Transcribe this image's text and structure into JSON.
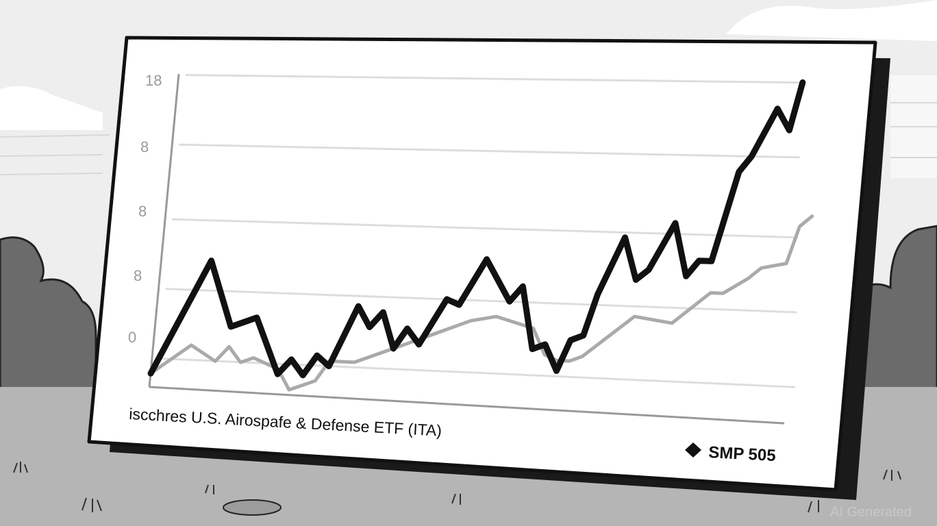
{
  "chart_data": {
    "type": "line",
    "title": "",
    "xlabel": "isсchres U.S. Airospafe & Defense ETF (ITA)",
    "ylabel": "",
    "ytick_labels": [
      "18",
      "8",
      "8",
      "8",
      "0"
    ],
    "grid": true,
    "legend_position": "bottom-right",
    "legend_label": "SMP 505",
    "series": [
      {
        "name": "",
        "color": "#111111",
        "points": [
          [
            0,
            -0.7
          ],
          [
            4,
            1.6
          ],
          [
            6,
            0.3
          ],
          [
            8,
            0.5
          ],
          [
            10,
            -0.6
          ],
          [
            11,
            -0.3
          ],
          [
            12,
            -0.6
          ],
          [
            13,
            -0.2
          ],
          [
            14,
            -0.4
          ],
          [
            16,
            0.8
          ],
          [
            17,
            0.4
          ],
          [
            18,
            0.7
          ],
          [
            19,
            0.0
          ],
          [
            20,
            0.4
          ],
          [
            21,
            0.1
          ],
          [
            23,
            1.0
          ],
          [
            24,
            0.9
          ],
          [
            26,
            1.8
          ],
          [
            28,
            1.0
          ],
          [
            29,
            1.3
          ],
          [
            30,
            0.1
          ],
          [
            31,
            0.2
          ],
          [
            32,
            -0.3
          ],
          [
            33,
            0.3
          ],
          [
            34,
            0.4
          ],
          [
            35,
            1.2
          ],
          [
            37,
            2.3
          ],
          [
            38,
            1.5
          ],
          [
            39,
            1.7
          ],
          [
            41,
            2.6
          ],
          [
            42,
            1.6
          ],
          [
            43,
            1.9
          ],
          [
            44,
            1.9
          ],
          [
            46,
            3.6
          ],
          [
            47,
            3.9
          ],
          [
            49,
            4.8
          ],
          [
            50,
            4.4
          ],
          [
            51,
            5.3
          ]
        ]
      },
      {
        "name": "",
        "color": "#aaaaaa",
        "points": [
          [
            0,
            -0.7
          ],
          [
            3,
            -0.1
          ],
          [
            5,
            -0.4
          ],
          [
            6,
            -0.1
          ],
          [
            7,
            -0.4
          ],
          [
            8,
            -0.3
          ],
          [
            10,
            -0.5
          ],
          [
            11,
            -0.9
          ],
          [
            13,
            -0.7
          ],
          [
            14,
            -0.3
          ],
          [
            16,
            -0.3
          ],
          [
            18,
            -0.1
          ],
          [
            21,
            0.2
          ],
          [
            25,
            0.6
          ],
          [
            27,
            0.7
          ],
          [
            30,
            0.5
          ],
          [
            31,
            0.0
          ],
          [
            32,
            -0.1
          ],
          [
            33,
            -0.1
          ],
          [
            34,
            0.0
          ],
          [
            38,
            0.8
          ],
          [
            41,
            0.7
          ],
          [
            44,
            1.3
          ],
          [
            45,
            1.3
          ],
          [
            47,
            1.6
          ],
          [
            48,
            1.8
          ],
          [
            50,
            1.9
          ],
          [
            51,
            2.6
          ],
          [
            52,
            2.8
          ]
        ]
      }
    ]
  },
  "watermark": "AI Generated",
  "colors": {
    "sky": "#f0f0f0",
    "cloud": "#ffffff",
    "bush": "#6d6d6d",
    "ground": "#b7b7b7",
    "panel": "#ffffff",
    "panel_border": "#111111",
    "grid": "#dddddd"
  }
}
